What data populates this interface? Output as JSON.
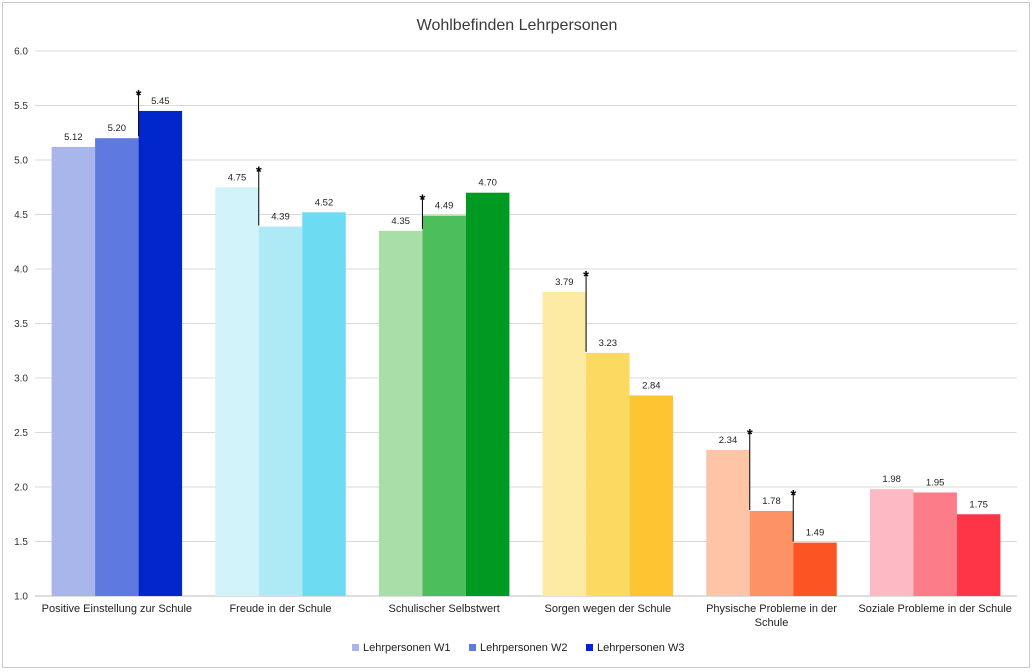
{
  "chart_data": {
    "type": "bar",
    "title": "Wohlbefinden Lehrpersonen",
    "ylim": [
      1.0,
      6.0
    ],
    "yticks": [
      "1.0",
      "1.5",
      "2.0",
      "2.5",
      "3.0",
      "3.5",
      "4.0",
      "4.5",
      "5.0",
      "5.5",
      "6.0"
    ],
    "grid": true,
    "legend_position": "bottom",
    "categories": [
      [
        "Positive Einstellung zur Schule"
      ],
      [
        "Freude in der Schule"
      ],
      [
        "Schulischer Selbstwert"
      ],
      [
        "Sorgen wegen der Schule"
      ],
      [
        "Physische Probleme in der",
        "Schule"
      ],
      [
        "Soziale Probleme in der Schule"
      ]
    ],
    "series": [
      {
        "name": "Lehrpersonen W1",
        "values": [
          5.12,
          4.75,
          4.35,
          3.79,
          2.34,
          1.98
        ],
        "labels": [
          "5.12",
          "4.75",
          "4.35",
          "3.79",
          "2.34",
          "1.98"
        ]
      },
      {
        "name": "Lehrpersonen W2",
        "values": [
          5.2,
          4.39,
          4.49,
          3.23,
          1.78,
          1.95
        ],
        "labels": [
          "5.20",
          "4.39",
          "4.49",
          "3.23",
          "1.78",
          "1.95"
        ]
      },
      {
        "name": "Lehrpersonen W3",
        "values": [
          5.45,
          4.52,
          4.7,
          2.84,
          1.49,
          1.75
        ],
        "labels": [
          "5.45",
          "4.52",
          "4.70",
          "2.84",
          "1.49",
          "1.75"
        ]
      }
    ],
    "colors": [
      [
        "#a9b6ec",
        "#5e79e0",
        "#0026cc"
      ],
      [
        "#d3f3fa",
        "#aee9f6",
        "#6ddcf3"
      ],
      [
        "#a8dfa8",
        "#4cbe5c",
        "#009a22"
      ],
      [
        "#fdeba4",
        "#fcd961",
        "#fcc531"
      ],
      [
        "#fdc4a6",
        "#fd9365",
        "#fd5424"
      ],
      [
        "#fdbac4",
        "#fd7c8a",
        "#fd3547"
      ]
    ],
    "legend_colors": [
      "#a9b6ec",
      "#5e79e0",
      "#0026cc"
    ],
    "significance": [
      {
        "category": 0,
        "from": 1,
        "to": 2,
        "mark": "*"
      },
      {
        "category": 1,
        "from": 0,
        "to": 1,
        "mark": "*"
      },
      {
        "category": 2,
        "from": 0,
        "to": 1,
        "mark": "*"
      },
      {
        "category": 3,
        "from": 0,
        "to": 1,
        "mark": "*"
      },
      {
        "category": 4,
        "from": 0,
        "to": 1,
        "mark": "*"
      },
      {
        "category": 4,
        "from": 1,
        "to": 2,
        "mark": "*"
      }
    ]
  }
}
